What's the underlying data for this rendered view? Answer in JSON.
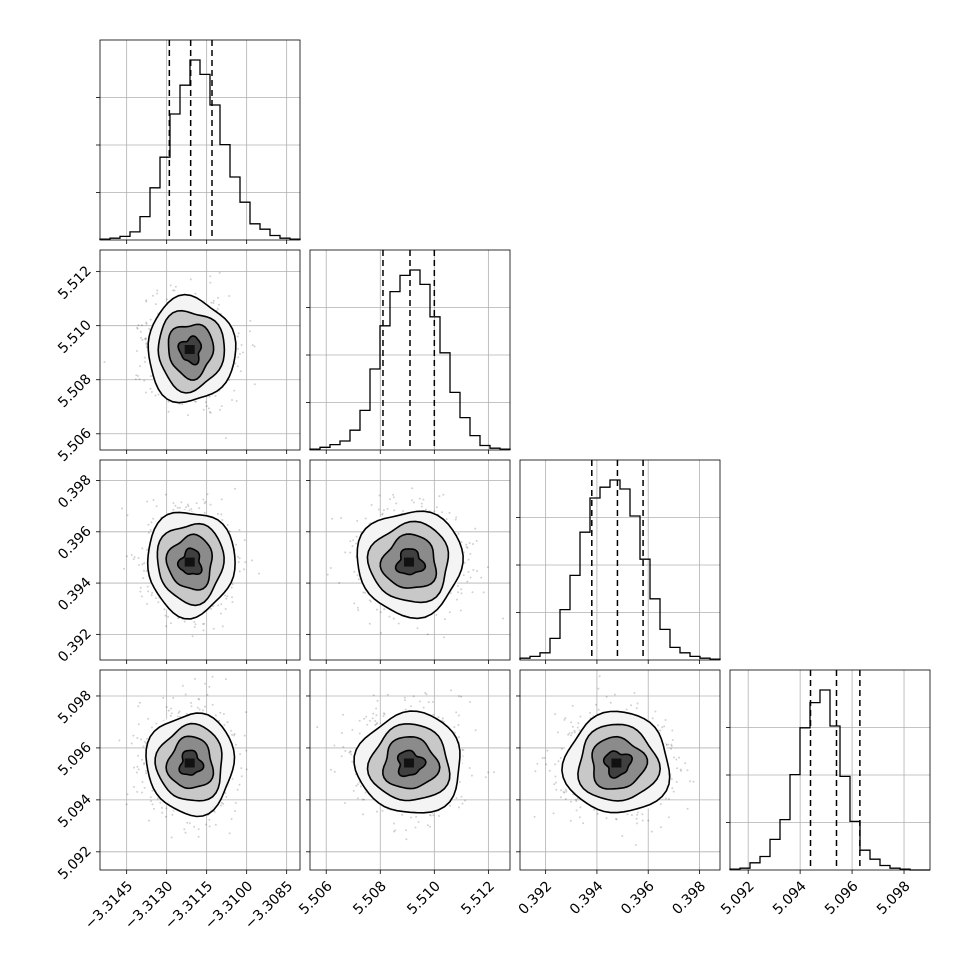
{
  "chart_data": {
    "type": "corner",
    "grid": true,
    "params": [
      {
        "id": "p0",
        "range": [
          -3.3155,
          -3.308
        ],
        "ticks": [
          -3.3145,
          -3.313,
          -3.3115,
          -3.31,
          -3.3085
        ],
        "tick_labels": [
          "−3.3145",
          "−3.3130",
          "−3.3115",
          "−3.3100",
          "−3.3085"
        ],
        "quantiles": [
          -3.3129,
          -3.3121,
          -3.3113
        ],
        "hist": [
          0.005,
          0.01,
          0.02,
          0.045,
          0.13,
          0.29,
          0.46,
          0.7,
          0.86,
          1.0,
          0.92,
          0.75,
          0.53,
          0.35,
          0.21,
          0.09,
          0.06,
          0.025,
          0.01,
          0.005
        ]
      },
      {
        "id": "p1",
        "range": [
          5.5054,
          5.5128
        ],
        "ticks": [
          5.506,
          5.508,
          5.51,
          5.512
        ],
        "tick_labels": [
          "5.506",
          "5.508",
          "5.510",
          "5.512"
        ],
        "quantiles": [
          5.5081,
          5.5091,
          5.51
        ],
        "hist": [
          0.005,
          0.015,
          0.03,
          0.05,
          0.11,
          0.22,
          0.45,
          0.69,
          0.88,
          0.97,
          1.0,
          0.92,
          0.74,
          0.54,
          0.32,
          0.18,
          0.08,
          0.025,
          0.01,
          0.005
        ]
      },
      {
        "id": "p2",
        "range": [
          0.391,
          0.3988
        ],
        "ticks": [
          0.392,
          0.394,
          0.396,
          0.398
        ],
        "tick_labels": [
          "0.392",
          "0.394",
          "0.396",
          "0.398"
        ],
        "quantiles": [
          0.3938,
          0.3948,
          0.3958
        ],
        "hist": [
          0.01,
          0.02,
          0.04,
          0.12,
          0.28,
          0.47,
          0.71,
          0.9,
          0.96,
          1.0,
          0.95,
          0.8,
          0.56,
          0.34,
          0.17,
          0.07,
          0.04,
          0.02,
          0.01,
          0.005
        ]
      },
      {
        "id": "p3",
        "range": [
          5.0913,
          5.099
        ],
        "ticks": [
          5.092,
          5.094,
          5.096,
          5.098
        ],
        "tick_labels": [
          "5.092",
          "5.094",
          "5.096",
          "5.098"
        ],
        "quantiles": [
          5.0944,
          5.0954,
          5.0963
        ],
        "hist": [
          0.005,
          0.01,
          0.04,
          0.075,
          0.17,
          0.28,
          0.53,
          0.79,
          0.93,
          1.0,
          0.8,
          0.52,
          0.27,
          0.11,
          0.06,
          0.025,
          0.01,
          0.005,
          0.0,
          0.0
        ]
      }
    ]
  }
}
